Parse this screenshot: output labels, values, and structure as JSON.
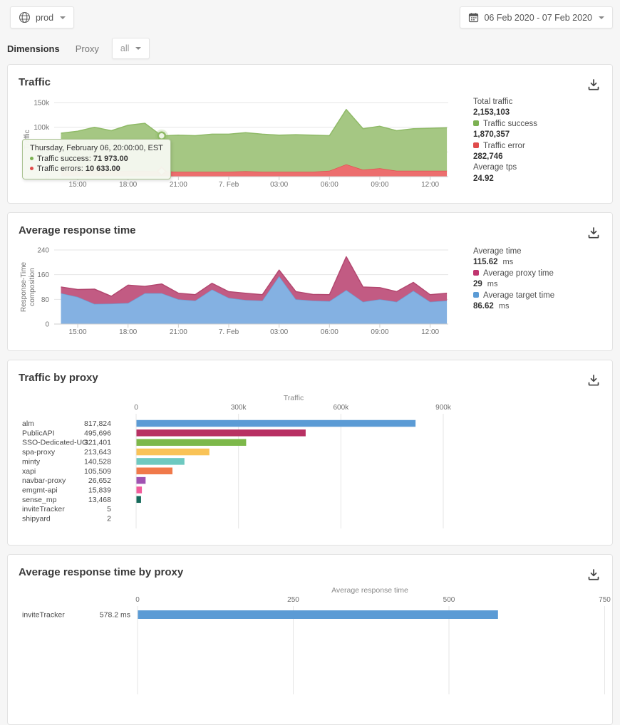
{
  "topbar": {
    "env_label": "prod",
    "date_range": "06 Feb 2020 - 07 Feb 2020"
  },
  "filters": {
    "dimensions_label": "Dimensions",
    "dimension_name": "Proxy",
    "dimension_value": "all"
  },
  "cards": {
    "traffic": {
      "title": "Traffic",
      "legend": [
        {
          "label": "Total traffic",
          "value": "2,153,103"
        },
        {
          "label": "Traffic success",
          "value": "1,870,357",
          "color": "#7cb152"
        },
        {
          "label": "Traffic error",
          "value": "282,746",
          "color": "#e04b4b"
        },
        {
          "label": "Average tps",
          "value": "24.92"
        }
      ],
      "tooltip": {
        "header": "Thursday, February 06, 20:00:00, EST",
        "rows": [
          {
            "label": "Traffic success:",
            "value": "71 973.00",
            "color": "#7cb152"
          },
          {
            "label": "Traffic errors:",
            "value": "10 633.00",
            "color": "#e04b4b"
          }
        ]
      }
    },
    "response_time": {
      "title": "Average response time",
      "legend": [
        {
          "label": "Average time",
          "value": "115.62",
          "suffix": "ms"
        },
        {
          "label": "Average proxy time",
          "value": "29",
          "suffix": "ms",
          "color": "#c0356f"
        },
        {
          "label": "Average target time",
          "value": "86.62",
          "suffix": "ms",
          "color": "#5b9bd5"
        }
      ]
    },
    "traffic_by_proxy": {
      "title": "Traffic by proxy"
    },
    "response_by_proxy": {
      "title": "Average response time by proxy"
    }
  },
  "chart_data": [
    {
      "type": "area",
      "stacked": true,
      "title": "Traffic",
      "x": [
        "14:00",
        "15:00",
        "16:00",
        "17:00",
        "18:00",
        "19:00",
        "20:00",
        "21:00",
        "22:00",
        "23:00",
        "7 Feb 00:00",
        "01:00",
        "02:00",
        "03:00",
        "04:00",
        "05:00",
        "06:00",
        "07:00",
        "08:00",
        "09:00",
        "10:00",
        "11:00",
        "12:00",
        "13:00"
      ],
      "x_tick_indices": [
        1,
        4,
        7,
        10,
        13,
        16,
        19,
        22
      ],
      "x_labels": [
        "15:00",
        "18:00",
        "21:00",
        "7. Feb",
        "03:00",
        "06:00",
        "09:00",
        "12:00"
      ],
      "ylabel": "Traffic",
      "ylabel_lines": [
        "Traffic"
      ],
      "ylim": [
        0,
        150000
      ],
      "y_ticks": [
        0,
        50000,
        100000,
        150000
      ],
      "y_tick_labels": [
        "0",
        "50k",
        "100k",
        "150k"
      ],
      "highlight_index": 6,
      "series": [
        {
          "name": "Traffic errors",
          "color": "#e25050",
          "fill": "#ec6e6e",
          "values": [
            11000,
            11000,
            12000,
            11000,
            12000,
            12000,
            10633,
            10000,
            10000,
            10000,
            10000,
            11000,
            10000,
            10000,
            10000,
            10000,
            12000,
            25000,
            14000,
            17000,
            12000,
            12000,
            12000,
            12000
          ]
        },
        {
          "name": "Traffic success",
          "color": "#8fba67",
          "fill": "#a5c783",
          "values": [
            77000,
            81000,
            88000,
            82000,
            92000,
            96000,
            71973,
            74000,
            73000,
            76000,
            76000,
            78000,
            76000,
            74000,
            75000,
            74000,
            71000,
            111000,
            83000,
            85000,
            81000,
            85000,
            86000,
            87000
          ]
        }
      ]
    },
    {
      "type": "area",
      "stacked": true,
      "title": "Average response time",
      "x": [
        "14:00",
        "15:00",
        "16:00",
        "17:00",
        "18:00",
        "19:00",
        "20:00",
        "21:00",
        "22:00",
        "23:00",
        "7 Feb 00:00",
        "01:00",
        "02:00",
        "03:00",
        "04:00",
        "05:00",
        "06:00",
        "07:00",
        "08:00",
        "09:00",
        "10:00",
        "11:00",
        "12:00",
        "13:00"
      ],
      "x_tick_indices": [
        1,
        4,
        7,
        10,
        13,
        16,
        19,
        22
      ],
      "x_labels": [
        "15:00",
        "18:00",
        "21:00",
        "7. Feb",
        "03:00",
        "06:00",
        "09:00",
        "12:00"
      ],
      "ylabel": "Response-Time composition",
      "ylabel_lines": [
        "Response-Time",
        "composition"
      ],
      "ylim": [
        0,
        240
      ],
      "y_ticks": [
        0,
        80,
        160,
        240
      ],
      "y_tick_labels": [
        "0",
        "80",
        "160",
        "240"
      ],
      "series": [
        {
          "name": "Average target time",
          "color": "#6d9fd4",
          "fill": "#84b1e2",
          "values": [
            100,
            88,
            65,
            66,
            68,
            100,
            100,
            80,
            76,
            112,
            85,
            78,
            76,
            155,
            80,
            76,
            74,
            110,
            72,
            80,
            72,
            108,
            72,
            76
          ]
        },
        {
          "name": "Average proxy time",
          "color": "#b34870",
          "fill": "#c25b83",
          "values": [
            20,
            24,
            48,
            24,
            58,
            22,
            30,
            20,
            19,
            20,
            20,
            22,
            19,
            20,
            25,
            20,
            21,
            108,
            48,
            38,
            33,
            27,
            23,
            24
          ]
        }
      ]
    },
    {
      "type": "bar",
      "orientation": "horizontal",
      "title": "Traffic by proxy",
      "xlabel": "Traffic",
      "categories": [
        "alm",
        "PublicAPI",
        "SSO-Dedicated-UG...",
        "spa-proxy",
        "minty",
        "xapi",
        "navbar-proxy",
        "emgmt-api",
        "sense_mp",
        "inviteTracker",
        "shipyard"
      ],
      "values": [
        817824,
        495696,
        321401,
        213643,
        140528,
        105509,
        26652,
        15839,
        13468,
        5,
        2
      ],
      "display_values": [
        "817,824",
        "495,696",
        "321,401",
        "213,643",
        "140,528",
        "105,509",
        "26,652",
        "15,839",
        "13,468",
        "5",
        "2"
      ],
      "colors": [
        "#5b9bd5",
        "#b83063",
        "#7db84a",
        "#f9c357",
        "#6ec9c0",
        "#f0794a",
        "#a052b2",
        "#f25c9b",
        "#156a5b",
        "#5b9bd5",
        "#5b9bd5"
      ],
      "x_ticks": [
        0,
        300000,
        600000,
        900000
      ],
      "x_tick_labels": [
        "0",
        "300k",
        "600k",
        "900k"
      ],
      "xlim": [
        0,
        900000
      ]
    },
    {
      "type": "bar",
      "orientation": "horizontal",
      "title": "Average response time by proxy",
      "xlabel": "Average response time",
      "categories": [
        "inviteTracker"
      ],
      "values": [
        578.2
      ],
      "display_values": [
        "578.2 ms"
      ],
      "colors": [
        "#5b9bd5"
      ],
      "x_ticks": [
        0,
        250,
        500,
        750
      ],
      "x_tick_labels": [
        "0",
        "250",
        "500",
        "750"
      ],
      "xlim": [
        0,
        750
      ]
    }
  ]
}
